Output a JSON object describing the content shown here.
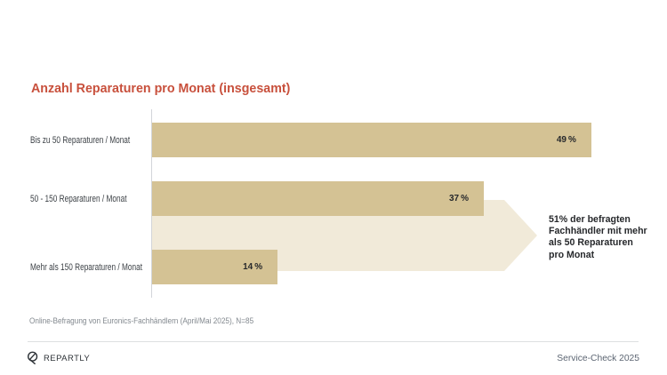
{
  "page": {
    "source_note": "Online-Befragung von Euronics-Fachhändlern (April/Mai 2025), N=85",
    "footer": {
      "brand": "REPARTLY",
      "edition": "Service-Check 2025"
    }
  },
  "colors": {
    "title": "#c8503c",
    "bar": "#d4c294",
    "arrow": "#f1ead9",
    "text_dark": "#26282b",
    "text_gray": "#83898f"
  },
  "chart_data": {
    "type": "bar",
    "orientation": "horizontal",
    "title": "Anzahl Reparaturen pro Monat (insgesamt)",
    "categories": [
      "Bis zu 50 Reparaturen / Monat",
      "50 - 150 Reparaturen / Monat",
      "Mehr als 150 Reparaturen / Monat"
    ],
    "values": [
      49,
      37,
      14
    ],
    "value_labels": [
      "49 %",
      "37 %",
      "14 %"
    ],
    "xlim": [
      0,
      57
    ],
    "grid": false,
    "legend": false,
    "annotation": "51% der befragten\nFachhändler mit mehr\nals 50 Reparaturen\npro Monat"
  }
}
